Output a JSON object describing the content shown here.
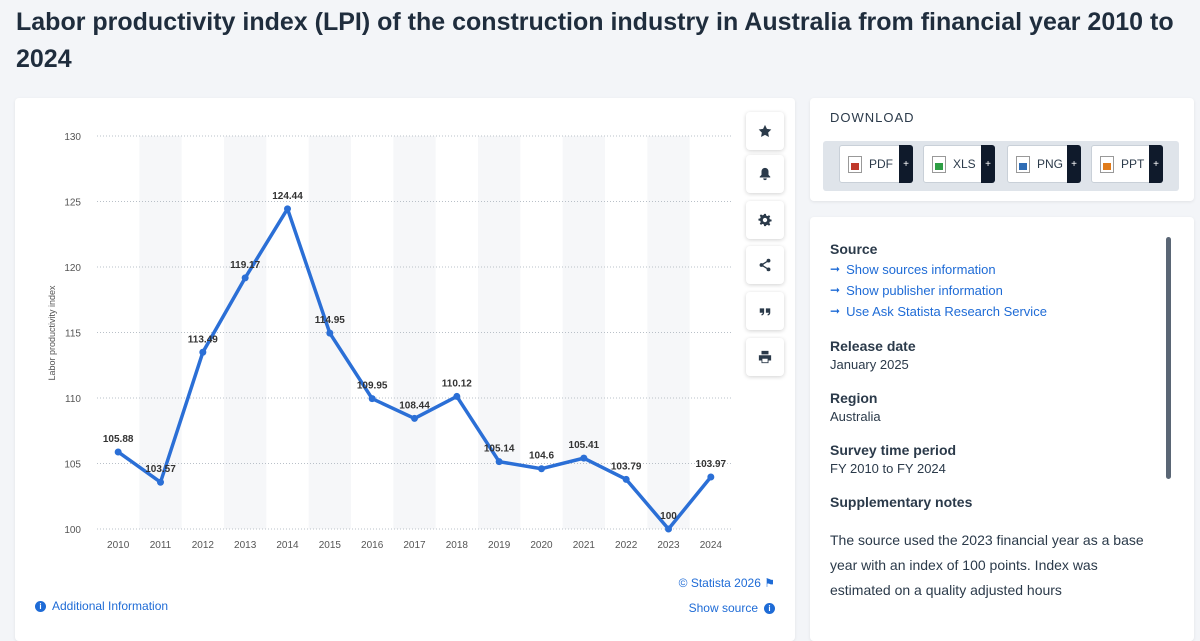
{
  "title": "Labor productivity index (LPI) of the construction industry in Australia from financial year 2010 to 2024",
  "chart_data": {
    "type": "line",
    "categories": [
      "2010",
      "2011",
      "2012",
      "2013",
      "2014",
      "2015",
      "2016",
      "2017",
      "2018",
      "2019",
      "2020",
      "2021",
      "2022",
      "2023",
      "2024"
    ],
    "values": [
      105.88,
      103.57,
      113.49,
      119.17,
      124.44,
      114.95,
      109.95,
      108.44,
      110.12,
      105.14,
      104.6,
      105.41,
      103.79,
      100,
      103.97
    ],
    "labels": [
      "105.88",
      "103.57",
      "113.49",
      "119.17",
      "124.44",
      "114.95",
      "109.95",
      "108.44",
      "110.12",
      "105.14",
      "104.6",
      "105.41",
      "103.79",
      "100",
      "103.97"
    ],
    "ylabel": "Labor productivity index",
    "xlabel": "",
    "ylim": [
      100,
      130
    ],
    "yticks": [
      "100",
      "105",
      "110",
      "115",
      "120",
      "125",
      "130"
    ],
    "grid": true,
    "line_color": "#2b6fd6"
  },
  "toolbar": {
    "icons": [
      "star-icon",
      "bell-icon",
      "gear-icon",
      "share-icon",
      "quote-icon",
      "print-icon"
    ]
  },
  "credit": "© Statista 2026",
  "additional_info": "Additional Information",
  "show_source": "Show source",
  "download": {
    "title": "DOWNLOAD",
    "buttons": [
      {
        "label": "PDF",
        "color": "#c0392b"
      },
      {
        "label": "XLS",
        "color": "#2e9e44"
      },
      {
        "label": "PNG",
        "color": "#2f6db5"
      },
      {
        "label": "PPT",
        "color": "#e07b1a"
      }
    ],
    "plus": "+"
  },
  "info": {
    "source_heading": "Source",
    "links": [
      "Show sources information",
      "Show publisher information",
      "Use Ask Statista Research Service"
    ],
    "release_heading": "Release date",
    "release_value": "January 2025",
    "region_heading": "Region",
    "region_value": "Australia",
    "survey_heading": "Survey time period",
    "survey_value": "FY 2010 to FY 2024",
    "notes_heading": "Supplementary notes",
    "notes_text": "The source used the 2023 financial year as a base year with an index of 100 points. Index was estimated on a quality adjusted hours"
  }
}
